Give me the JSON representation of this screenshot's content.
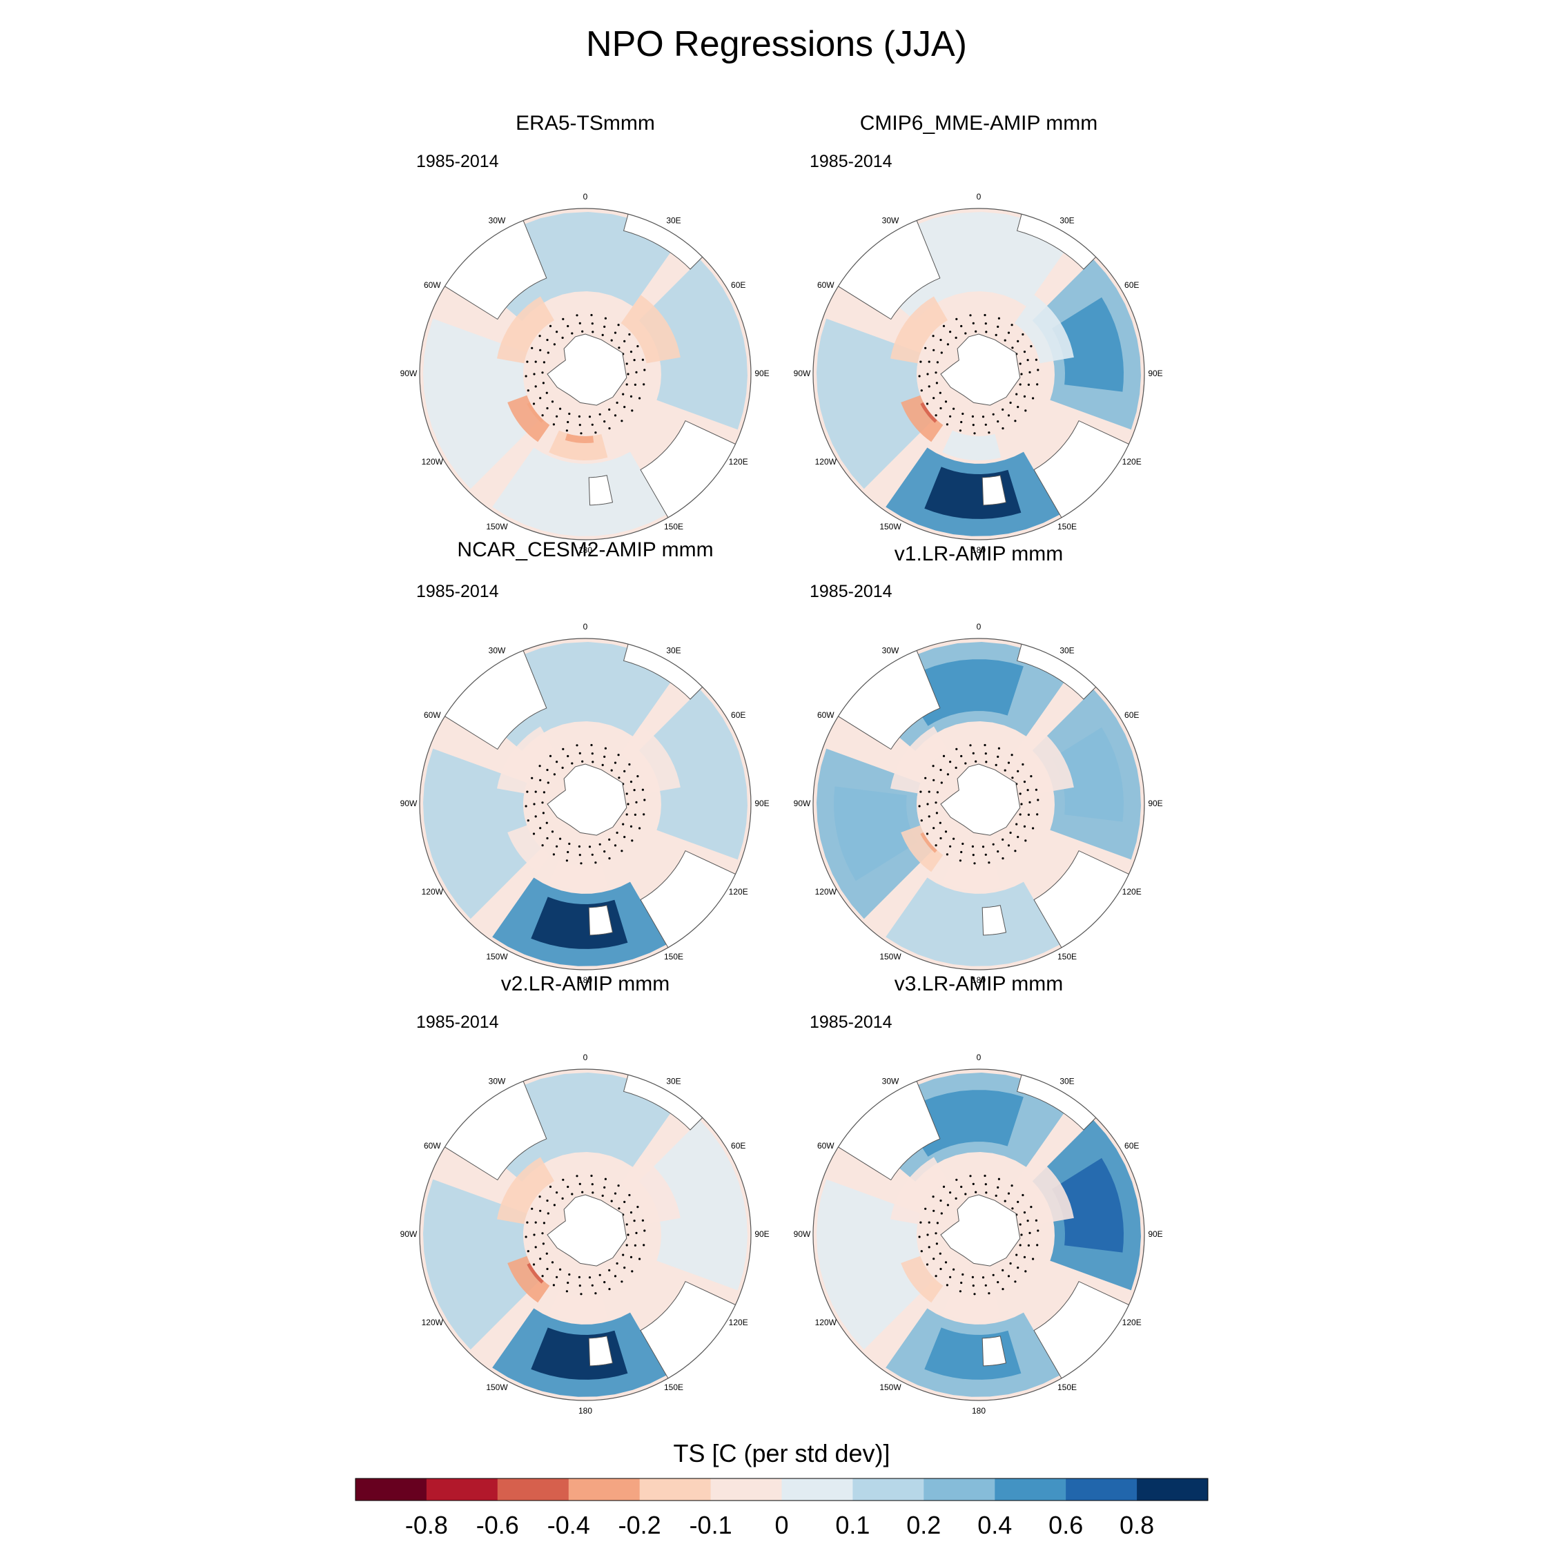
{
  "title": "NPO Regressions (JJA)",
  "chart_data": [
    {
      "type": "polar-contour-map",
      "title": "ERA5-TSmmm",
      "period": "1985-2014",
      "variable": "TS",
      "pattern": {
        "west_pacific_warm": 0.05,
        "east_pacific_warm": 0.0,
        "indian_warm": 0.15,
        "atlantic_warm": 0.15,
        "ross_cool": -0.2,
        "amundsen_cool": -0.25,
        "sea_ice_band": -0.05
      }
    },
    {
      "type": "polar-contour-map",
      "title": "CMIP6_MME-AMIP  mmm",
      "period": "1985-2014",
      "variable": "TS",
      "pattern": {
        "west_pacific_warm": 0.5,
        "east_pacific_warm": 0.1,
        "indian_warm": 0.25,
        "atlantic_warm": 0.05,
        "ross_cool": 0.0,
        "amundsen_cool": -0.3,
        "sea_ice_band": -0.1
      }
    },
    {
      "type": "polar-contour-map",
      "title": "NCAR_CESM2-AMIP  mmm",
      "period": "1985-2014",
      "variable": "TS",
      "pattern": {
        "west_pacific_warm": 0.55,
        "east_pacific_warm": 0.15,
        "indian_warm": 0.1,
        "atlantic_warm": 0.1,
        "ross_cool": -0.05,
        "amundsen_cool": -0.1,
        "sea_ice_band": -0.1
      }
    },
    {
      "type": "polar-contour-map",
      "title": "v1.LR-AMIP  mmm",
      "period": "1985-2014",
      "variable": "TS",
      "pattern": {
        "west_pacific_warm": 0.15,
        "east_pacific_warm": 0.2,
        "indian_warm": 0.2,
        "atlantic_warm": 0.35,
        "ross_cool": -0.05,
        "amundsen_cool": -0.2,
        "sea_ice_band": -0.1
      }
    },
    {
      "type": "polar-contour-map",
      "title": "v2.LR-AMIP  mmm",
      "period": "1985-2014",
      "variable": "TS",
      "pattern": {
        "west_pacific_warm": 0.55,
        "east_pacific_warm": 0.1,
        "indian_warm": 0.05,
        "atlantic_warm": 0.1,
        "ross_cool": -0.05,
        "amundsen_cool": -0.35,
        "sea_ice_band": -0.05
      }
    },
    {
      "type": "polar-contour-map",
      "title": "v3.LR-AMIP  mmm",
      "period": "1985-2014",
      "variable": "TS",
      "pattern": {
        "west_pacific_warm": 0.3,
        "east_pacific_warm": 0.05,
        "indian_warm": 0.4,
        "atlantic_warm": 0.3,
        "ross_cool": -0.1,
        "amundsen_cool": -0.15,
        "sea_ice_band": -0.1
      }
    }
  ],
  "longitude_labels": [
    "0",
    "30E",
    "60E",
    "90E",
    "120E",
    "150E",
    "180",
    "150W",
    "120W",
    "90W",
    "60W",
    "30W"
  ],
  "colorbar": {
    "title": "TS [C (per std dev)]",
    "tick_labels": [
      "-0.8",
      "-0.6",
      "-0.4",
      "-0.2",
      "-0.1",
      "0",
      "0.1",
      "0.2",
      "0.4",
      "0.6",
      "0.8"
    ],
    "colors": [
      "#67001f",
      "#b2182b",
      "#d6604d",
      "#f4a582",
      "#fbd3bc",
      "#f9e6df",
      "#e2ecf2",
      "#b7d7e8",
      "#86bcd9",
      "#4393c3",
      "#2166ac",
      "#053061"
    ]
  }
}
